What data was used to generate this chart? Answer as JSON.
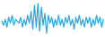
{
  "values": [
    0,
    -2,
    1,
    -3,
    2,
    -1,
    3,
    -2,
    1,
    0,
    -1,
    2,
    -3,
    1,
    -2,
    3,
    -1,
    5,
    -4,
    8,
    -3,
    9,
    -5,
    7,
    -2,
    4,
    -6,
    3,
    -1,
    2,
    -3,
    1,
    -2,
    3,
    -2,
    1,
    -3,
    2,
    -1,
    3,
    -2,
    1,
    -4,
    2,
    -1,
    3,
    -2,
    1,
    -3,
    2,
    -1,
    2,
    -3,
    1,
    -2,
    3,
    -1,
    2,
    -3,
    1
  ],
  "line_color": "#29abe2",
  "background_color": "#ffffff",
  "linewidth": 0.9
}
